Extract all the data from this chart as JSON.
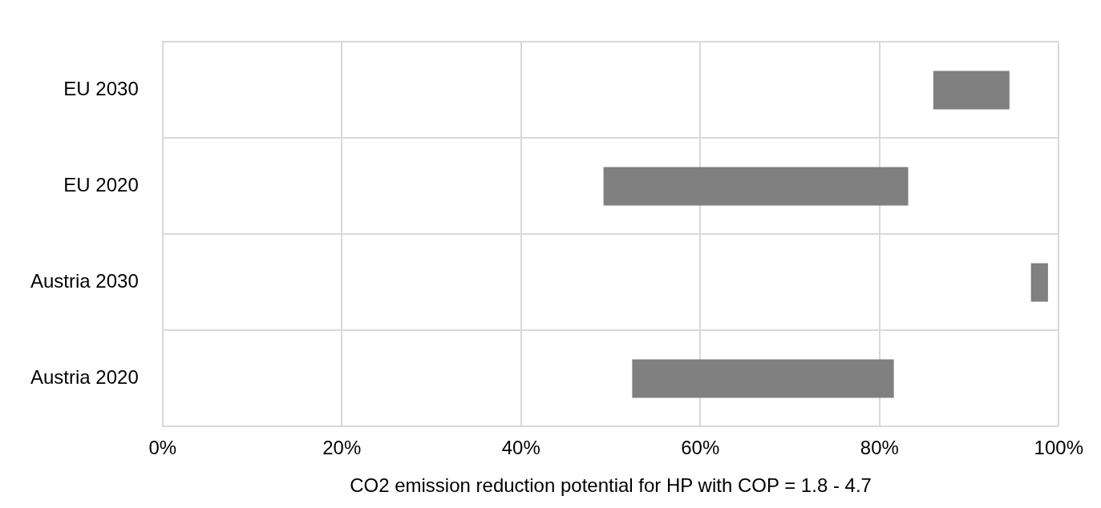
{
  "chart_data": {
    "type": "bar",
    "orientation": "horizontal",
    "categories": [
      "EU 2030",
      "EU 2020",
      "Austria 2030",
      "Austria 2020"
    ],
    "base": [
      86,
      49.2,
      96.9,
      52.4
    ],
    "values": [
      8.5,
      34,
      1.9,
      29.2
    ],
    "color": "#808080",
    "xlim": [
      0,
      100
    ],
    "xticks": [
      {
        "value": 0,
        "label": "0%"
      },
      {
        "value": 20,
        "label": "20%"
      },
      {
        "value": 40,
        "label": "40%"
      },
      {
        "value": 60,
        "label": "60%"
      },
      {
        "value": 80,
        "label": "80%"
      },
      {
        "value": 100,
        "label": "100%"
      }
    ],
    "xlabel": "CO2 emission reduction potential for HP with COP = 1.8 - 4.7",
    "grid": true
  }
}
